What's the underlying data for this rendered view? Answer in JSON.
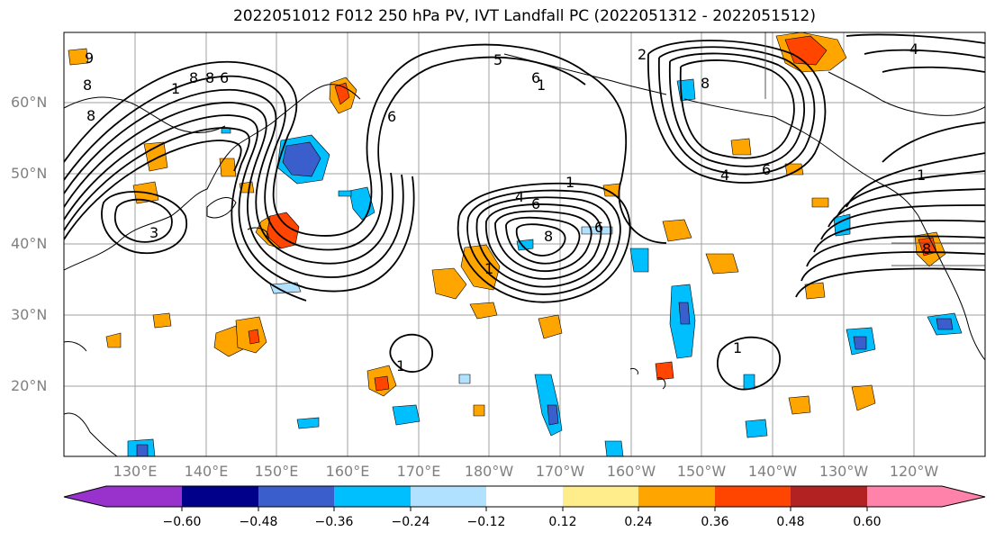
{
  "title": "2022051012 F012 250 hPa PV, IVT Landfall PC (2022051312 - 2022051512)",
  "lat_labels": [
    "60°N",
    "50°N",
    "40°N",
    "30°N",
    "20°N"
  ],
  "lon_labels": [
    "130°E",
    "140°E",
    "150°E",
    "160°E",
    "170°E",
    "180°W",
    "170°W",
    "160°W",
    "150°W",
    "140°W",
    "130°W",
    "120°W"
  ],
  "colorbar": {
    "colors": [
      "#9932cc",
      "#00008b",
      "#3a5fcd",
      "#00bfff",
      "#b0e2ff",
      "#ffffff",
      "#ffec8b",
      "#ffa500",
      "#ff4500",
      "#b22222",
      "#ff82ab"
    ],
    "tick_labels": [
      "−0.60",
      "−0.48",
      "−0.36",
      "−0.24",
      "−0.12",
      "0.12",
      "0.24",
      "0.36",
      "0.48",
      "0.60"
    ]
  },
  "contour_labels": [
    "8",
    "6",
    "8",
    "1",
    "8",
    "6",
    "8",
    "4",
    "6",
    "4",
    "1",
    "3",
    "8",
    "6",
    "4",
    "1",
    "2",
    "5",
    "6",
    "8",
    "1",
    "1",
    "1",
    "8",
    "6",
    "1",
    "9"
  ]
}
